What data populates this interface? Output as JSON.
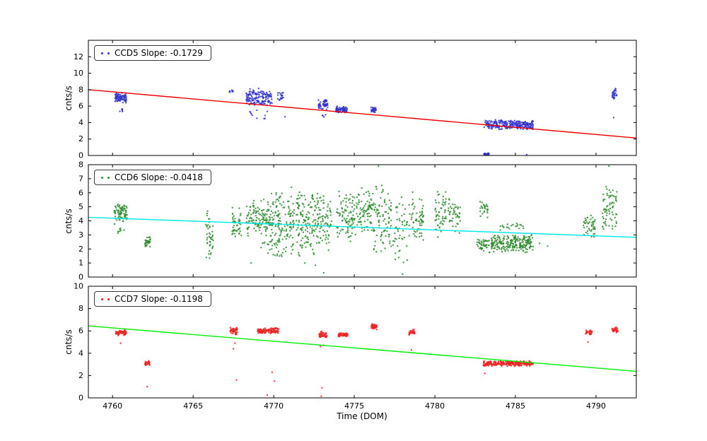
{
  "chart_data": {
    "type": "scatter",
    "xlabel": "Time (DOM)",
    "xlim": [
      4758.5,
      4792.5
    ],
    "xticks": [
      4760,
      4765,
      4770,
      4775,
      4780,
      4785,
      4790
    ],
    "subplots": [
      {
        "id": "ccd5",
        "legend_label": "CCD5 Slope: -0.1729",
        "slope": -0.1729,
        "ylabel": "cnts/s",
        "ylim": [
          0,
          14
        ],
        "yticks": [
          0,
          2,
          4,
          6,
          8,
          10,
          12
        ],
        "marker_color": "#3434cc",
        "line_color": "#ee0000",
        "line": {
          "y_left": 8.0,
          "y_right": 2.12
        },
        "clusters": [
          [
            4760.15,
            4760.85,
            6.3,
            7.7,
            90
          ],
          [
            4760.3,
            4760.7,
            5.0,
            6.2,
            6
          ],
          [
            4767.25,
            4767.5,
            7.4,
            8.1,
            8
          ],
          [
            4768.3,
            4769.9,
            6.0,
            8.2,
            150
          ],
          [
            4768.5,
            4769.6,
            4.3,
            5.8,
            10
          ],
          [
            4770.25,
            4770.6,
            6.4,
            7.8,
            22
          ],
          [
            4772.75,
            4773.35,
            5.5,
            6.9,
            55
          ],
          [
            4773.0,
            4773.25,
            4.5,
            5.2,
            4
          ],
          [
            4773.85,
            4774.55,
            5.1,
            6.0,
            70
          ],
          [
            4776.0,
            4776.35,
            5.1,
            5.9,
            35
          ],
          [
            4783.0,
            4786.1,
            3.1,
            4.4,
            260
          ],
          [
            4783.05,
            4783.35,
            0.0,
            0.3,
            45
          ],
          [
            4791.0,
            4791.3,
            6.8,
            8.3,
            28
          ]
        ],
        "singles": [
          [
            4785.7,
            0.1
          ],
          [
            4791.1,
            4.6
          ],
          [
            4770.7,
            4.7
          ]
        ]
      },
      {
        "id": "ccd6",
        "legend_label": "CCD6 Slope: -0.0418",
        "slope": -0.0418,
        "ylabel": "cnts/s",
        "ylim": [
          0,
          8
        ],
        "yticks": [
          0,
          1,
          2,
          3,
          4,
          5,
          6,
          7,
          8
        ],
        "marker_color": "#2e8b2e",
        "line_color": "#00e8e8",
        "line": {
          "y_left": 4.25,
          "y_right": 2.83
        },
        "clusters": [
          [
            4760.1,
            4760.9,
            3.7,
            5.3,
            80
          ],
          [
            4760.3,
            4760.8,
            2.9,
            3.6,
            8
          ],
          [
            4762.0,
            4762.35,
            2.1,
            2.9,
            35
          ],
          [
            4765.75,
            4766.25,
            1.1,
            5.0,
            45
          ],
          [
            4767.4,
            4768.0,
            2.4,
            5.1,
            45
          ],
          [
            4768.3,
            4769.2,
            2.8,
            5.5,
            70
          ],
          [
            4769.2,
            4770.2,
            1.2,
            6.3,
            110
          ],
          [
            4770.2,
            4771.3,
            0.8,
            6.6,
            110
          ],
          [
            4771.4,
            4772.6,
            0.6,
            6.8,
            130
          ],
          [
            4772.6,
            4773.6,
            1.5,
            6.2,
            90
          ],
          [
            4773.9,
            4775.2,
            2.2,
            6.3,
            100
          ],
          [
            4775.2,
            4776.2,
            2.8,
            6.6,
            80
          ],
          [
            4776.2,
            4777.3,
            1.2,
            7.2,
            90
          ],
          [
            4777.4,
            4778.3,
            0.4,
            6.0,
            50
          ],
          [
            4778.4,
            4779.3,
            2.4,
            6.2,
            60
          ],
          [
            4780.0,
            4780.7,
            2.6,
            6.3,
            55
          ],
          [
            4780.8,
            4781.6,
            2.9,
            5.8,
            45
          ],
          [
            4782.6,
            4783.4,
            1.7,
            2.9,
            45
          ],
          [
            4782.8,
            4783.3,
            4.1,
            5.6,
            25
          ],
          [
            4783.5,
            4786.1,
            1.7,
            3.1,
            230
          ],
          [
            4784.0,
            4785.5,
            3.2,
            3.9,
            20
          ],
          [
            4789.2,
            4790.0,
            2.7,
            4.6,
            45
          ],
          [
            4790.4,
            4791.3,
            2.9,
            6.6,
            70
          ]
        ],
        "singles": [
          [
            4776.5,
            7.9
          ],
          [
            4790.8,
            7.9
          ],
          [
            4773.1,
            0.3
          ],
          [
            4778.0,
            0.2
          ],
          [
            4786.5,
            2.4
          ],
          [
            4787.0,
            2.2
          ],
          [
            4768.6,
            1.0
          ]
        ]
      },
      {
        "id": "ccd7",
        "legend_label": "CCD7 Slope: -0.1198",
        "slope": -0.1198,
        "ylabel": "cnts/s",
        "ylim": [
          0,
          10
        ],
        "yticks": [
          0,
          2,
          4,
          6,
          8,
          10
        ],
        "marker_color": "#ee2222",
        "line_color": "#00ee00",
        "line": {
          "y_left": 6.45,
          "y_right": 2.38
        },
        "clusters": [
          [
            4760.2,
            4760.85,
            5.55,
            6.1,
            70
          ],
          [
            4762.0,
            4762.3,
            2.85,
            3.35,
            30
          ],
          [
            4767.3,
            4767.75,
            5.6,
            6.35,
            45
          ],
          [
            4769.0,
            4769.55,
            5.75,
            6.25,
            55
          ],
          [
            4769.6,
            4770.3,
            5.75,
            6.3,
            60
          ],
          [
            4772.8,
            4773.3,
            5.35,
            6.0,
            45
          ],
          [
            4774.0,
            4774.6,
            5.45,
            5.85,
            55
          ],
          [
            4776.05,
            4776.4,
            6.1,
            6.65,
            40
          ],
          [
            4778.4,
            4778.75,
            5.6,
            6.15,
            30
          ],
          [
            4783.0,
            4786.1,
            2.8,
            3.35,
            240
          ],
          [
            4789.35,
            4789.75,
            5.65,
            6.1,
            28
          ],
          [
            4791.0,
            4791.35,
            5.8,
            6.35,
            28
          ]
        ],
        "singles": [
          [
            4760.5,
            4.9
          ],
          [
            4762.15,
            1.0
          ],
          [
            4767.5,
            4.4
          ],
          [
            4767.6,
            4.9
          ],
          [
            4767.7,
            1.6
          ],
          [
            4769.6,
            0.25
          ],
          [
            4769.9,
            2.3
          ],
          [
            4770.05,
            1.5
          ],
          [
            4772.95,
            0.15
          ],
          [
            4773.0,
            0.9
          ],
          [
            4772.9,
            4.6
          ],
          [
            4773.1,
            4.7
          ],
          [
            4778.55,
            4.3
          ],
          [
            4783.1,
            2.2
          ],
          [
            4789.5,
            5.0
          ]
        ]
      }
    ]
  }
}
